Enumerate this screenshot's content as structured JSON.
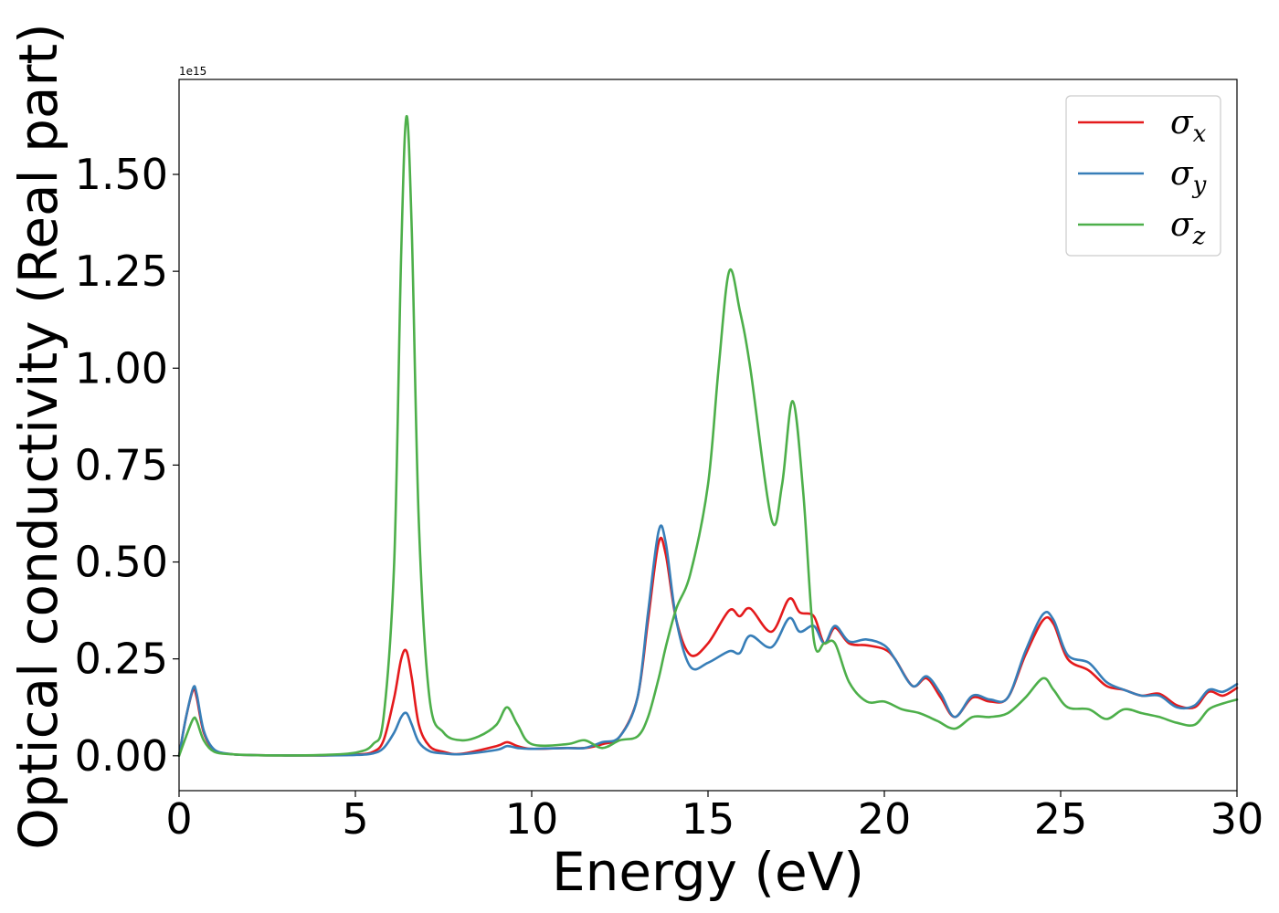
{
  "chart_data": {
    "type": "line",
    "xlabel": "Energy (eV)",
    "ylabel": "Optical conductivity (Real part)",
    "offset_label": "1e15",
    "y_scale": 1000000000000000.0,
    "xlim": [
      0,
      30
    ],
    "ylim": [
      -0.09,
      1.745
    ],
    "xticks": [
      0,
      5,
      10,
      15,
      20,
      25,
      30
    ],
    "xtick_labels": [
      "0",
      "5",
      "10",
      "15",
      "20",
      "25",
      "30"
    ],
    "yticks": [
      0,
      0.25,
      0.5,
      0.75,
      1.0,
      1.25,
      1.5
    ],
    "ytick_labels": [
      "0.00",
      "0.25",
      "0.50",
      "0.75",
      "1.00",
      "1.25",
      "1.50"
    ],
    "grid": false,
    "legend_position": "top-right",
    "series": [
      {
        "name": "σx",
        "label_base": "σ",
        "label_sub": "x",
        "color": "#e41a1c",
        "x": [
          0,
          0.2,
          0.4,
          0.5,
          0.7,
          1,
          1.5,
          2,
          3,
          4,
          5,
          5.5,
          5.8,
          6.1,
          6.3,
          6.45,
          6.6,
          6.8,
          7.1,
          7.5,
          8,
          9,
          9.3,
          9.6,
          10,
          11,
          11.5,
          12,
          12.5,
          13,
          13.3,
          13.6,
          13.8,
          14.1,
          14.5,
          15,
          15.6,
          15.9,
          16.2,
          16.8,
          17.3,
          17.6,
          18,
          18.3,
          18.6,
          19,
          19.5,
          20,
          20.3,
          20.8,
          21.2,
          21.6,
          22,
          22.5,
          23,
          23.5,
          24,
          24.5,
          24.8,
          25.2,
          25.8,
          26.3,
          26.8,
          27.3,
          27.8,
          28.3,
          28.8,
          29.2,
          29.6,
          30
        ],
        "y": [
          0,
          0.1,
          0.17,
          0.15,
          0.06,
          0.015,
          0.004,
          0.002,
          0.001,
          0.001,
          0.003,
          0.01,
          0.04,
          0.15,
          0.25,
          0.27,
          0.2,
          0.08,
          0.025,
          0.01,
          0.005,
          0.025,
          0.035,
          0.025,
          0.018,
          0.02,
          0.02,
          0.03,
          0.05,
          0.15,
          0.35,
          0.55,
          0.52,
          0.35,
          0.26,
          0.29,
          0.375,
          0.36,
          0.38,
          0.32,
          0.405,
          0.37,
          0.36,
          0.29,
          0.33,
          0.29,
          0.285,
          0.275,
          0.25,
          0.18,
          0.2,
          0.15,
          0.1,
          0.15,
          0.14,
          0.15,
          0.26,
          0.35,
          0.34,
          0.25,
          0.22,
          0.18,
          0.17,
          0.155,
          0.16,
          0.13,
          0.125,
          0.165,
          0.155,
          0.175
        ]
      },
      {
        "name": "σy",
        "label_base": "σ",
        "label_sub": "y",
        "color": "#377eb8",
        "x": [
          0,
          0.2,
          0.4,
          0.5,
          0.7,
          1,
          1.5,
          2,
          3,
          4,
          5,
          5.5,
          5.8,
          6.1,
          6.3,
          6.45,
          6.6,
          6.8,
          7.1,
          7.5,
          8,
          9,
          9.3,
          9.6,
          10,
          11,
          11.5,
          12,
          12.5,
          13,
          13.3,
          13.6,
          13.8,
          14.1,
          14.5,
          15,
          15.6,
          15.9,
          16.2,
          16.8,
          17.3,
          17.6,
          18,
          18.3,
          18.6,
          19,
          19.5,
          20,
          20.3,
          20.8,
          21.2,
          21.6,
          22,
          22.5,
          23,
          23.5,
          24,
          24.5,
          24.8,
          25.2,
          25.8,
          26.3,
          26.8,
          27.3,
          27.8,
          28.3,
          28.8,
          29.2,
          29.6,
          30
        ],
        "y": [
          0,
          0.1,
          0.175,
          0.16,
          0.065,
          0.016,
          0.004,
          0.002,
          0.001,
          0.001,
          0.002,
          0.006,
          0.02,
          0.06,
          0.1,
          0.11,
          0.08,
          0.035,
          0.012,
          0.006,
          0.004,
          0.015,
          0.025,
          0.02,
          0.018,
          0.02,
          0.02,
          0.035,
          0.05,
          0.15,
          0.37,
          0.58,
          0.55,
          0.35,
          0.23,
          0.24,
          0.27,
          0.265,
          0.31,
          0.28,
          0.355,
          0.32,
          0.335,
          0.29,
          0.335,
          0.295,
          0.3,
          0.285,
          0.25,
          0.18,
          0.205,
          0.16,
          0.1,
          0.155,
          0.145,
          0.15,
          0.27,
          0.365,
          0.35,
          0.26,
          0.24,
          0.19,
          0.17,
          0.155,
          0.155,
          0.125,
          0.13,
          0.17,
          0.165,
          0.185
        ]
      },
      {
        "name": "σz",
        "label_base": "σ",
        "label_sub": "z",
        "color": "#4daf4a",
        "x": [
          0,
          0.2,
          0.4,
          0.5,
          0.7,
          1,
          1.5,
          2,
          3,
          4,
          5,
          5.5,
          5.8,
          6.1,
          6.3,
          6.45,
          6.6,
          6.8,
          7.1,
          7.5,
          8,
          8.5,
          9,
          9.3,
          9.6,
          10,
          11,
          11.5,
          12,
          12.5,
          13,
          13.3,
          13.6,
          13.8,
          14.1,
          14.5,
          15,
          15.3,
          15.6,
          15.9,
          16.2,
          16.8,
          17.1,
          17.4,
          17.7,
          18,
          18.3,
          18.6,
          19,
          19.5,
          20,
          20.5,
          21,
          21.5,
          22,
          22.5,
          23,
          23.5,
          24,
          24.5,
          24.8,
          25.2,
          25.8,
          26.3,
          26.8,
          27.3,
          27.8,
          28.3,
          28.8,
          29.2,
          29.6,
          30
        ],
        "y": [
          0,
          0.05,
          0.095,
          0.09,
          0.04,
          0.01,
          0.004,
          0.002,
          0.001,
          0.002,
          0.008,
          0.03,
          0.1,
          0.5,
          1.3,
          1.65,
          1.35,
          0.6,
          0.15,
          0.06,
          0.04,
          0.05,
          0.08,
          0.125,
          0.08,
          0.03,
          0.03,
          0.04,
          0.02,
          0.04,
          0.05,
          0.1,
          0.2,
          0.28,
          0.38,
          0.47,
          0.7,
          1.0,
          1.25,
          1.15,
          1.0,
          0.61,
          0.7,
          0.915,
          0.68,
          0.3,
          0.29,
          0.29,
          0.19,
          0.14,
          0.14,
          0.12,
          0.11,
          0.09,
          0.07,
          0.1,
          0.1,
          0.11,
          0.15,
          0.2,
          0.17,
          0.125,
          0.12,
          0.095,
          0.12,
          0.11,
          0.1,
          0.085,
          0.08,
          0.12,
          0.135,
          0.145
        ]
      }
    ]
  }
}
